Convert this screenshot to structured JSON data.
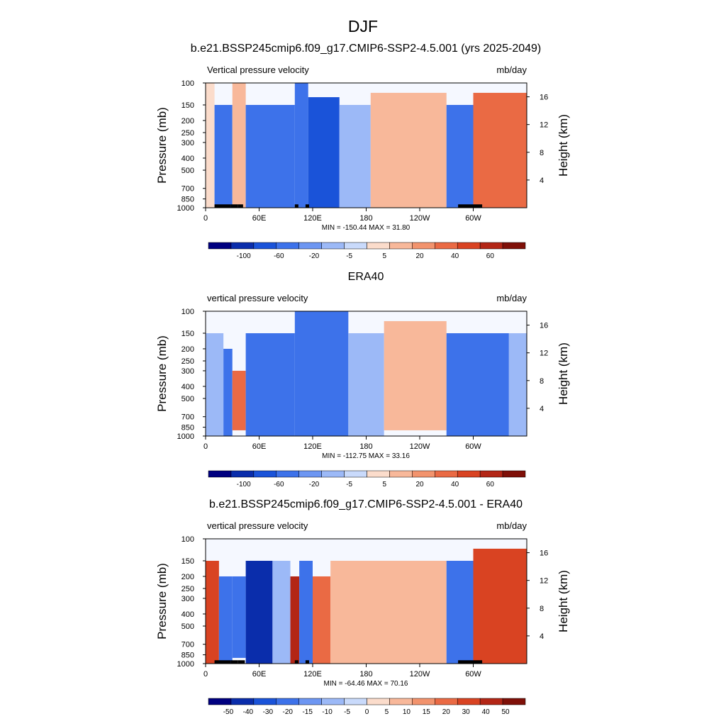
{
  "figure": {
    "title": "DJF",
    "background": "#ffffff"
  },
  "chart_data": [
    {
      "type": "heatmap",
      "title": "b.e21.BSSP245cmip6.f09_g17.CMIP6-SSP2-4.5.001 (yrs 2025-2049)",
      "left_string": "Vertical pressure velocity",
      "right_string": "mb/day",
      "ylabel": "Pressure (mb)",
      "ylabel_right": "Height (km)",
      "x_ticks": [
        "0",
        "60E",
        "120E",
        "180",
        "120W",
        "60W"
      ],
      "x_tick_values": [
        0,
        60,
        120,
        180,
        240,
        300
      ],
      "xlim": [
        0,
        360
      ],
      "y_ticks": [
        "100",
        "150",
        "200",
        "250",
        "300",
        "400",
        "500",
        "700",
        "850",
        "1000"
      ],
      "y_tick_values": [
        100,
        150,
        200,
        250,
        300,
        400,
        500,
        700,
        850,
        1000
      ],
      "ylim": [
        1000,
        100
      ],
      "y_scale": "log",
      "y_right_ticks": [
        "16",
        "12",
        "8",
        "4"
      ],
      "y_right_tick_values": [
        16,
        12,
        8,
        4
      ],
      "stats": "MIN = -150.44  MAX =  31.80",
      "colorbar_labels": [
        "-100",
        "-60",
        "-20",
        "-5",
        "5",
        "20",
        "40",
        "60"
      ],
      "colorbar_colors": [
        "#000080",
        "#0a2dab",
        "#1a53d9",
        "#3d72ea",
        "#6d96f2",
        "#9cb9f7",
        "#c9dafb",
        "#fbdccb",
        "#f8b89a",
        "#f2936d",
        "#ea6a44",
        "#d94322",
        "#b32616",
        "#7f1008"
      ],
      "field": [
        {
          "x": [
            0,
            10
          ],
          "p": [
            100,
            1000
          ],
          "v": 3
        },
        {
          "x": [
            10,
            30
          ],
          "p": [
            150,
            1000
          ],
          "v": -40
        },
        {
          "x": [
            30,
            45
          ],
          "p": [
            100,
            1000
          ],
          "v": 5
        },
        {
          "x": [
            45,
            100
          ],
          "p": [
            150,
            1000
          ],
          "v": -60
        },
        {
          "x": [
            100,
            115
          ],
          "p": [
            100,
            1000
          ],
          "v": -30
        },
        {
          "x": [
            115,
            150
          ],
          "p": [
            130,
            1000
          ],
          "v": -80
        },
        {
          "x": [
            150,
            185
          ],
          "p": [
            150,
            1000
          ],
          "v": -20
        },
        {
          "x": [
            185,
            270
          ],
          "p": [
            120,
            1000
          ],
          "v": 15
        },
        {
          "x": [
            270,
            300
          ],
          "p": [
            150,
            1000
          ],
          "v": -40
        },
        {
          "x": [
            300,
            360
          ],
          "p": [
            120,
            1000
          ],
          "v": 20
        }
      ],
      "topography": [
        [
          10,
          28
        ],
        [
          28,
          36
        ],
        [
          36,
          42
        ],
        [
          100,
          104
        ],
        [
          112,
          116
        ],
        [
          283,
          310
        ]
      ]
    },
    {
      "type": "heatmap",
      "title": "ERA40",
      "left_string": "vertical pressure velocity",
      "right_string": "mb/day",
      "ylabel": "Pressure (mb)",
      "ylabel_right": "Height (km)",
      "x_ticks": [
        "0",
        "60E",
        "120E",
        "180",
        "120W",
        "60W"
      ],
      "x_tick_values": [
        0,
        60,
        120,
        180,
        240,
        300
      ],
      "xlim": [
        0,
        360
      ],
      "y_ticks": [
        "100",
        "150",
        "200",
        "250",
        "300",
        "400",
        "500",
        "700",
        "850",
        "1000"
      ],
      "y_tick_values": [
        100,
        150,
        200,
        250,
        300,
        400,
        500,
        700,
        850,
        1000
      ],
      "ylim": [
        1000,
        100
      ],
      "y_scale": "log",
      "y_right_ticks": [
        "16",
        "12",
        "8",
        "4"
      ],
      "y_right_tick_values": [
        16,
        12,
        8,
        4
      ],
      "stats": "MIN = -112.75  MAX =  33.16",
      "colorbar_labels": [
        "-100",
        "-60",
        "-20",
        "-5",
        "5",
        "20",
        "40",
        "60"
      ],
      "colorbar_colors": [
        "#000080",
        "#0a2dab",
        "#1a53d9",
        "#3d72ea",
        "#6d96f2",
        "#9cb9f7",
        "#c9dafb",
        "#fbdccb",
        "#f8b89a",
        "#f2936d",
        "#ea6a44",
        "#d94322",
        "#b32616",
        "#7f1008"
      ],
      "field": [
        {
          "x": [
            0,
            20
          ],
          "p": [
            150,
            1000
          ],
          "v": -20
        },
        {
          "x": [
            20,
            30
          ],
          "p": [
            200,
            1000
          ],
          "v": -40
        },
        {
          "x": [
            30,
            45
          ],
          "p": [
            300,
            900
          ],
          "v": 30
        },
        {
          "x": [
            45,
            100
          ],
          "p": [
            150,
            1000
          ],
          "v": -40
        },
        {
          "x": [
            100,
            160
          ],
          "p": [
            100,
            1000
          ],
          "v": -60
        },
        {
          "x": [
            160,
            200
          ],
          "p": [
            150,
            1000
          ],
          "v": -15
        },
        {
          "x": [
            200,
            270
          ],
          "p": [
            120,
            900
          ],
          "v": 15
        },
        {
          "x": [
            270,
            340
          ],
          "p": [
            150,
            1000
          ],
          "v": -40
        },
        {
          "x": [
            340,
            360
          ],
          "p": [
            150,
            1000
          ],
          "v": -10
        }
      ],
      "topography": []
    },
    {
      "type": "heatmap",
      "title": "b.e21.BSSP245cmip6.f09_g17.CMIP6-SSP2-4.5.001 - ERA40",
      "left_string": "vertical pressure velocity",
      "right_string": "mb/day",
      "ylabel": "Pressure (mb)",
      "ylabel_right": "Height (km)",
      "x_ticks": [
        "0",
        "60E",
        "120E",
        "180",
        "120W",
        "60W"
      ],
      "x_tick_values": [
        0,
        60,
        120,
        180,
        240,
        300
      ],
      "xlim": [
        0,
        360
      ],
      "y_ticks": [
        "100",
        "150",
        "200",
        "250",
        "300",
        "400",
        "500",
        "700",
        "850",
        "1000"
      ],
      "y_tick_values": [
        100,
        150,
        200,
        250,
        300,
        400,
        500,
        700,
        850,
        1000
      ],
      "ylim": [
        1000,
        100
      ],
      "y_scale": "log",
      "y_right_ticks": [
        "16",
        "12",
        "8",
        "4"
      ],
      "y_right_tick_values": [
        16,
        12,
        8,
        4
      ],
      "stats": "MIN = -64.46  MAX =  70.16",
      "colorbar_labels": [
        "-50",
        "-40",
        "-30",
        "-20",
        "-15",
        "-10",
        "-5",
        "0",
        "5",
        "10",
        "15",
        "20",
        "30",
        "40",
        "50"
      ],
      "colorbar_colors": [
        "#000080",
        "#0a2dab",
        "#1a53d9",
        "#3d72ea",
        "#6d96f2",
        "#9cb9f7",
        "#c9dafb",
        "#fbdccb",
        "#f8b89a",
        "#f2936d",
        "#ea6a44",
        "#d94322",
        "#b32616",
        "#7f1008"
      ],
      "field": [
        {
          "x": [
            0,
            15
          ],
          "p": [
            150,
            1000
          ],
          "v": 30
        },
        {
          "x": [
            15,
            30
          ],
          "p": [
            200,
            1000
          ],
          "v": -20
        },
        {
          "x": [
            30,
            45
          ],
          "p": [
            200,
            900
          ],
          "v": -30
        },
        {
          "x": [
            45,
            75
          ],
          "p": [
            150,
            1000
          ],
          "v": -45
        },
        {
          "x": [
            75,
            95
          ],
          "p": [
            150,
            1000
          ],
          "v": -10
        },
        {
          "x": [
            95,
            105
          ],
          "p": [
            200,
            1000
          ],
          "v": 40
        },
        {
          "x": [
            105,
            120
          ],
          "p": [
            150,
            1000
          ],
          "v": -30
        },
        {
          "x": [
            120,
            140
          ],
          "p": [
            200,
            1000
          ],
          "v": 15
        },
        {
          "x": [
            140,
            270
          ],
          "p": [
            150,
            1000
          ],
          "v": 5
        },
        {
          "x": [
            270,
            300
          ],
          "p": [
            150,
            1000
          ],
          "v": -30
        },
        {
          "x": [
            300,
            360
          ],
          "p": [
            120,
            1000
          ],
          "v": 30
        }
      ],
      "topography": [
        [
          10,
          28
        ],
        [
          28,
          36
        ],
        [
          36,
          44
        ],
        [
          100,
          104
        ],
        [
          112,
          116
        ],
        [
          283,
          310
        ]
      ]
    }
  ]
}
